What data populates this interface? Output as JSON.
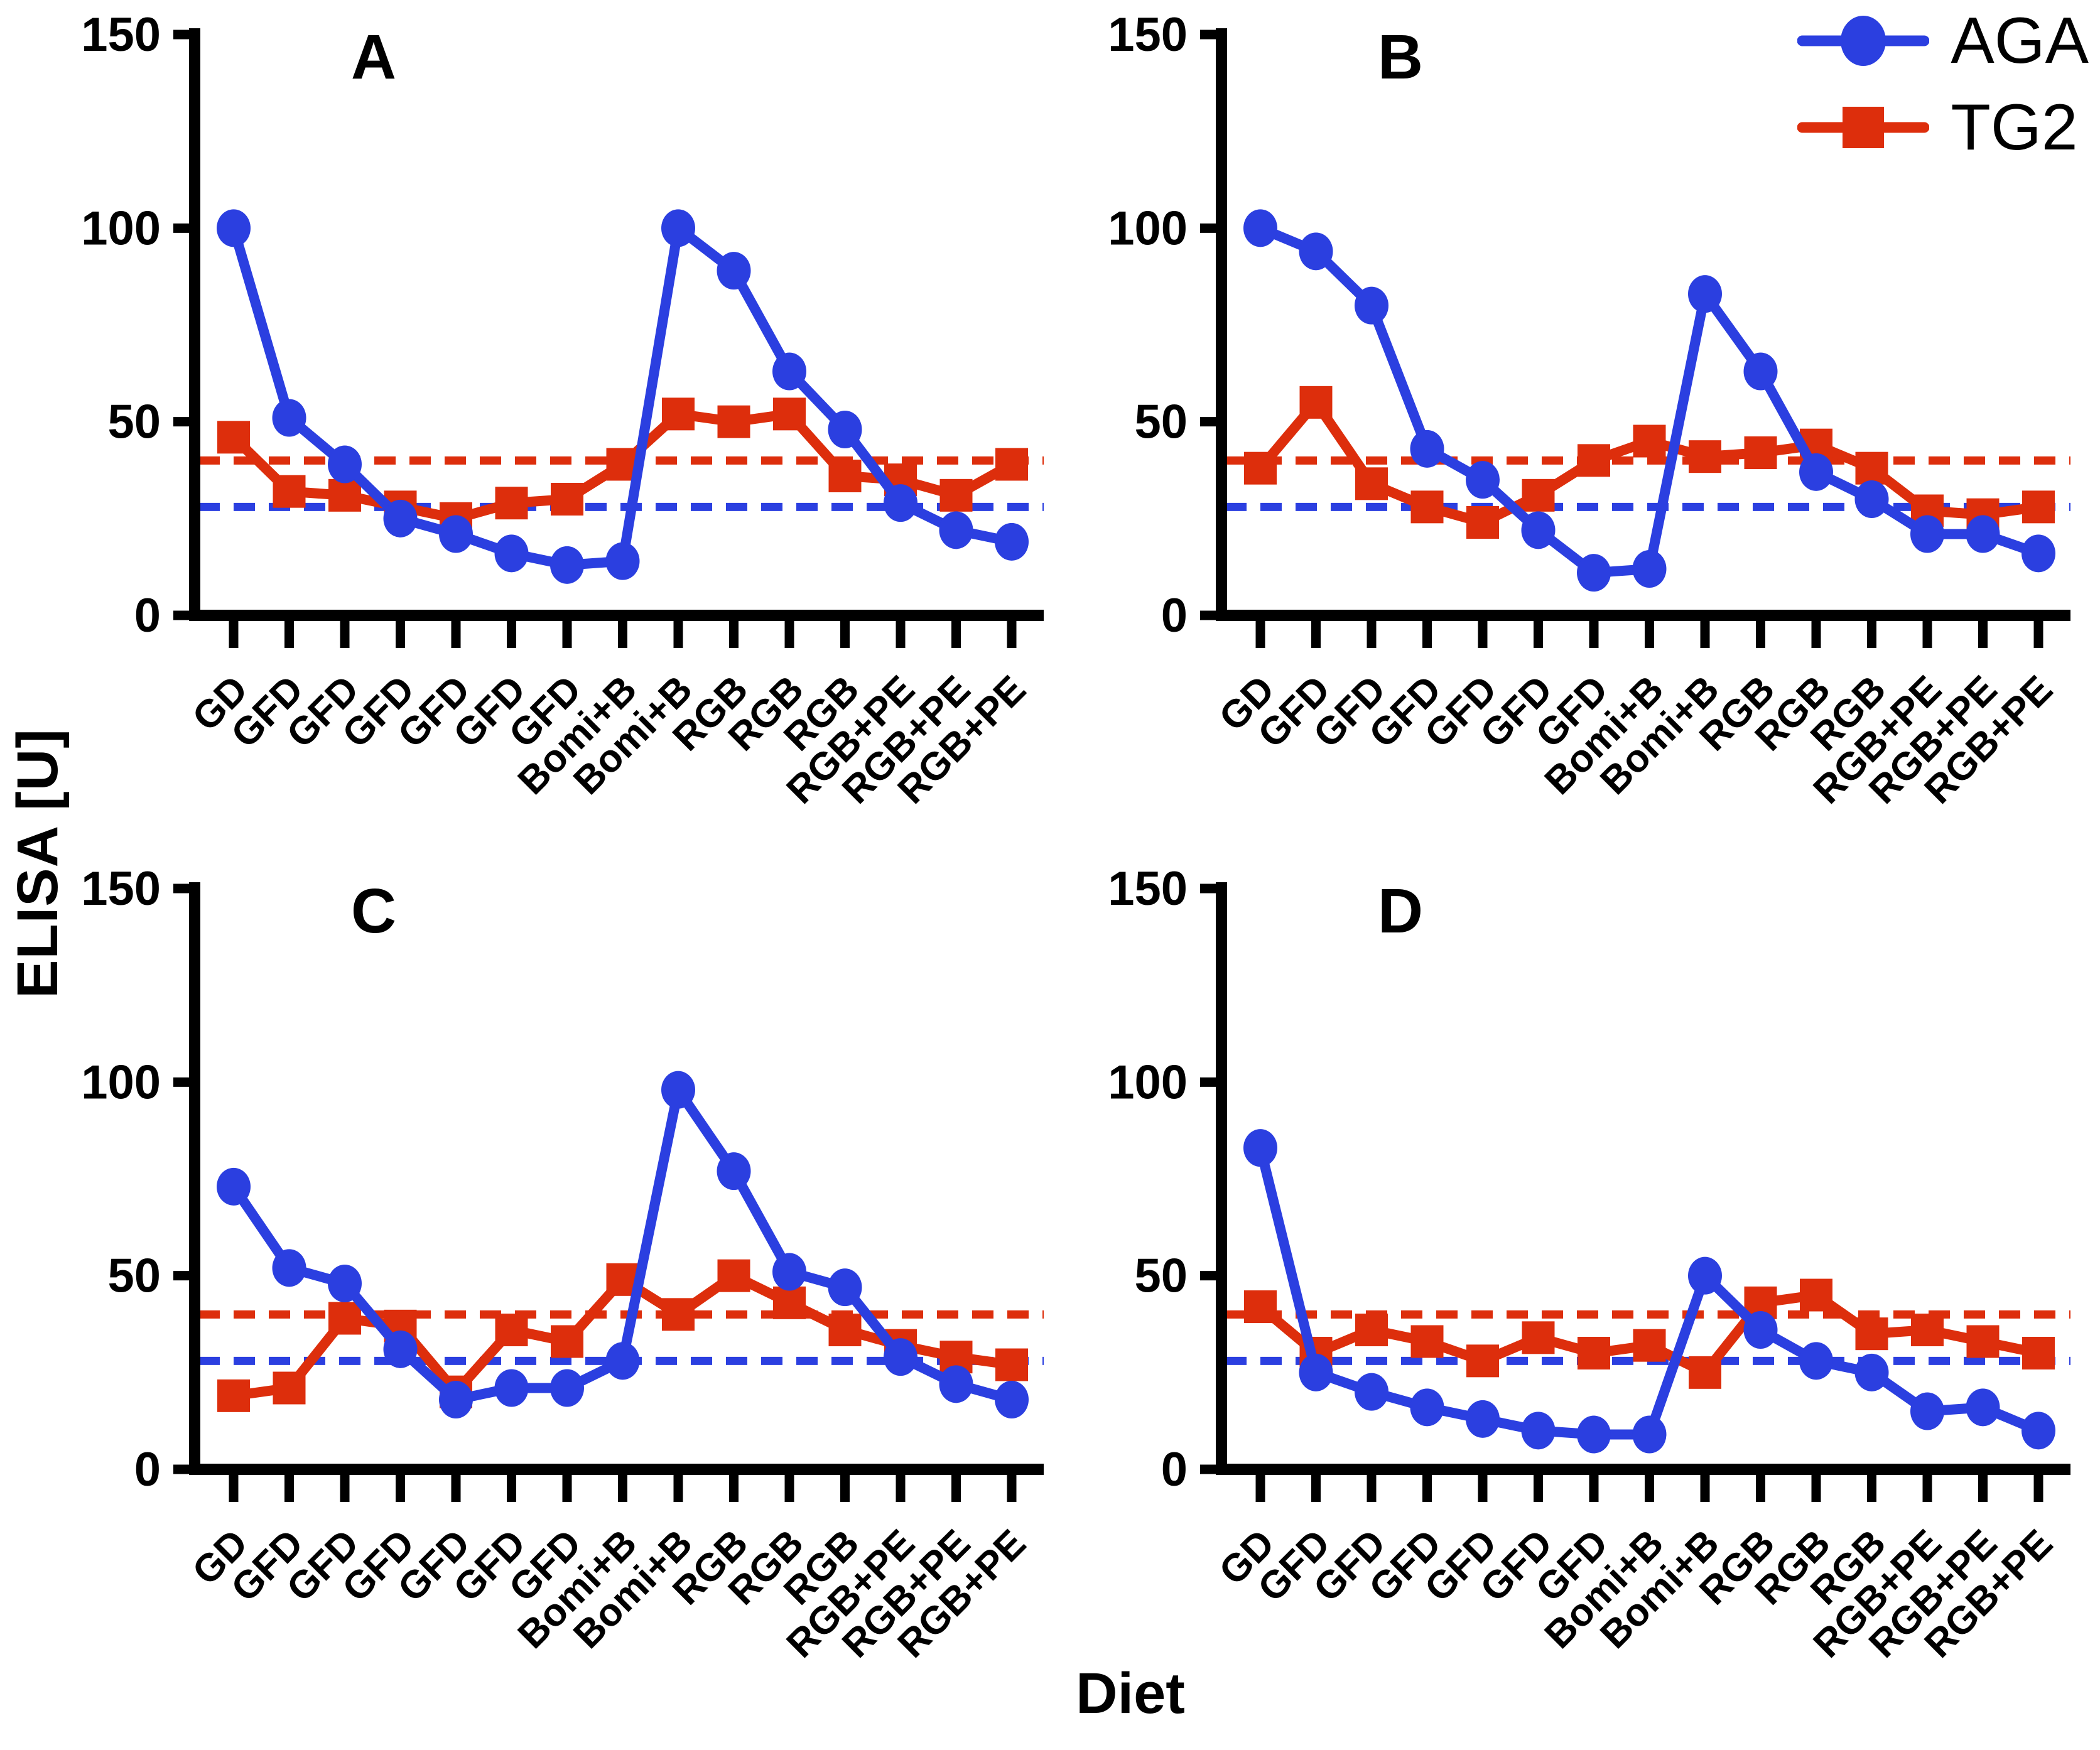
{
  "figure": {
    "y_axis_title": "ELISA [U]",
    "x_axis_title": "Diet",
    "legend": [
      {
        "name": "AGA",
        "marker": "circle",
        "color": "#2B3FE0"
      },
      {
        "name": "TG2",
        "marker": "square",
        "color": "#DD2E0C"
      }
    ]
  },
  "colors": {
    "aga_blue": "#2B3FE0",
    "tg2_red": "#DD2E0C",
    "axis_black": "#000000",
    "background": "#FFFFFF"
  },
  "chart_data": {
    "type": "line",
    "categories": [
      "GD",
      "GFD",
      "GFD",
      "GFD",
      "GFD",
      "GFD",
      "GFD",
      "Bomi+B",
      "Bomi+B",
      "RGB",
      "RGB",
      "RGB",
      "RGB+PE",
      "RGB+PE",
      "RGB+PE"
    ],
    "xlabel": "Diet",
    "ylabel": "ELISA [U]",
    "ylim": [
      0,
      150
    ],
    "yticks": [
      0,
      50,
      100,
      150
    ],
    "grid": false,
    "legend_position": "top-right",
    "marker_styles": {
      "AGA": "circle",
      "TG2": "square"
    },
    "series_colors": {
      "AGA": "#2B3FE0",
      "TG2": "#DD2E0C"
    },
    "cutoff_lines": [
      {
        "series": "TG2",
        "value": 40,
        "style": "dashed",
        "color": "#DD2E0C"
      },
      {
        "series": "AGA",
        "value": 28,
        "style": "dashed",
        "color": "#2B3FE0"
      }
    ],
    "panels": [
      {
        "label": "A",
        "series": [
          {
            "name": "AGA",
            "values": [
              100,
              51,
              39,
              25,
              21,
              16,
              13,
              14,
              100,
              89,
              63,
              48,
              29,
              22,
              19
            ]
          },
          {
            "name": "TG2",
            "values": [
              46,
              32,
              31,
              28,
              25,
              29,
              30,
              39,
              52,
              50,
              52,
              36,
              35,
              31,
              39
            ]
          }
        ]
      },
      {
        "label": "B",
        "series": [
          {
            "name": "AGA",
            "values": [
              100,
              94,
              80,
              43,
              35,
              22,
              11,
              12,
              83,
              63,
              37,
              30,
              21,
              21,
              16
            ]
          },
          {
            "name": "TG2",
            "values": [
              38,
              55,
              34,
              28,
              24,
              31,
              40,
              45,
              41,
              42,
              44,
              38,
              27,
              26,
              28
            ]
          }
        ]
      },
      {
        "label": "C",
        "series": [
          {
            "name": "AGA",
            "values": [
              73,
              52,
              48,
              31,
              18,
              21,
              21,
              28,
              98,
              77,
              51,
              47,
              29,
              22,
              18
            ]
          },
          {
            "name": "TG2",
            "values": [
              19,
              21,
              39,
              37,
              20,
              36,
              33,
              49,
              40,
              50,
              43,
              36,
              32,
              29,
              27
            ]
          }
        ]
      },
      {
        "label": "D",
        "series": [
          {
            "name": "AGA",
            "values": [
              83,
              25,
              20,
              16,
              13,
              10,
              9,
              9,
              50,
              36,
              28,
              25,
              15,
              16,
              10
            ]
          },
          {
            "name": "TG2",
            "values": [
              42,
              30,
              36,
              33,
              28,
              34,
              30,
              32,
              25,
              43,
              45,
              35,
              36,
              33,
              30
            ]
          }
        ]
      }
    ]
  }
}
